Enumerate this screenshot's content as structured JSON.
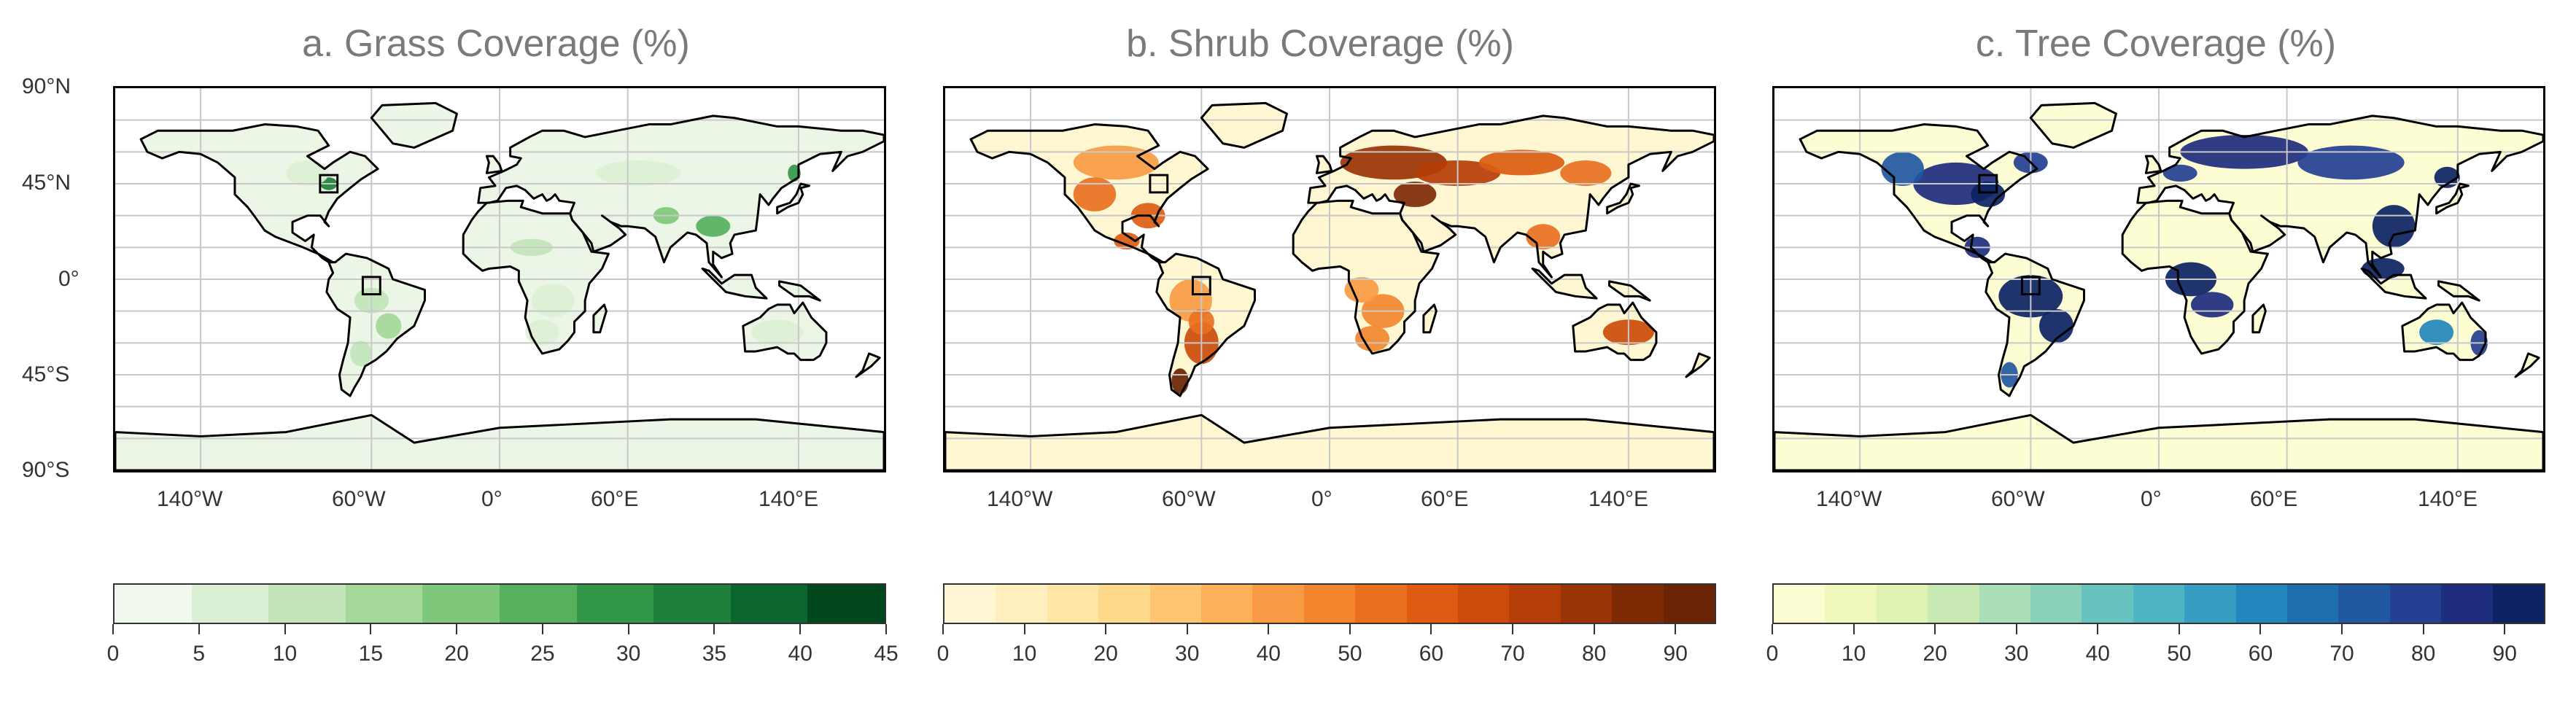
{
  "figure": {
    "lat_labels": [
      "90°N",
      "45°N",
      "0°",
      "45°S",
      "90°S"
    ],
    "lon_labels": [
      "140°W",
      "60°W",
      "0°",
      "60°E",
      "140°E"
    ],
    "panels": [
      {
        "id": "grass",
        "title": "a. Grass Coverage (%)",
        "show_lat_labels": true,
        "colorbar_ticks": [
          "0",
          "5",
          "10",
          "15",
          "20",
          "25",
          "30",
          "35",
          "40",
          "45"
        ],
        "colorbar_range": [
          0,
          45
        ],
        "colors": [
          "#f1f9ee",
          "#dcf0d6",
          "#c2e5ba",
          "#a3d899",
          "#7fc77a",
          "#56b05e",
          "#33974a",
          "#1d7f3a",
          "#0b662c",
          "#00471d"
        ],
        "land_color": "#ecf6e7",
        "accent_color": "#3e9e50"
      },
      {
        "id": "shrub",
        "title": "b. Shrub Coverage (%)",
        "show_lat_labels": false,
        "colorbar_ticks": [
          "0",
          "10",
          "20",
          "30",
          "40",
          "50",
          "60",
          "70",
          "80",
          "90"
        ],
        "colorbar_range": [
          0,
          95
        ],
        "colors": [
          "#fff6d4",
          "#ffefbe",
          "#fee6a5",
          "#fed98b",
          "#fec671",
          "#fdb25a",
          "#f99b45",
          "#f3852f",
          "#e9701f",
          "#dd5c12",
          "#cc4b0c",
          "#b53d07",
          "#9a3305",
          "#7e2a05",
          "#6a2304"
        ],
        "land_color": "#fff6d2",
        "accent_color": "#c9550e"
      },
      {
        "id": "tree",
        "title": "c. Tree Coverage (%)",
        "show_lat_labels": false,
        "colorbar_ticks": [
          "0",
          "10",
          "20",
          "30",
          "40",
          "50",
          "60",
          "70",
          "80",
          "90"
        ],
        "colorbar_range": [
          0,
          95
        ],
        "colors": [
          "#fcfdd2",
          "#f0f9bb",
          "#e0f2b2",
          "#c8e9b4",
          "#abdeb6",
          "#89d1ba",
          "#68c3be",
          "#4eb3c3",
          "#379ec2",
          "#2386bc",
          "#1f6eb0",
          "#2257a2",
          "#243f93",
          "#1e2d7d",
          "#0c2263"
        ],
        "land_color": "#fcfdd2",
        "accent_color": "#0f2a6e"
      }
    ]
  }
}
